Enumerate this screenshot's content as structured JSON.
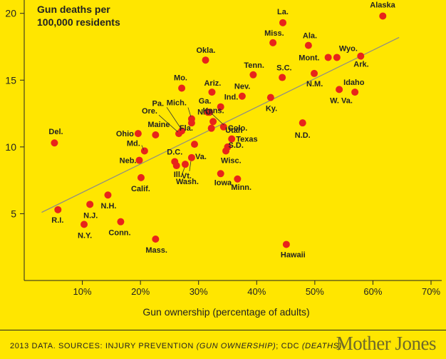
{
  "chart_data": {
    "type": "scatter",
    "title": "Gun deaths per 100,000 residents",
    "title_lines": [
      "Gun deaths per",
      "100,000 residents"
    ],
    "xlabel": "Gun ownership (percentage of adults)",
    "ylabel": "Gun deaths per 100,000 residents",
    "xlim": [
      0,
      70
    ],
    "ylim": [
      0,
      21
    ],
    "x_ticks": [
      10,
      20,
      30,
      40,
      50,
      60,
      70
    ],
    "x_tick_labels": [
      "10%",
      "20%",
      "30%",
      "40%",
      "50%",
      "60%",
      "70%"
    ],
    "y_ticks": [
      5,
      10,
      15,
      20
    ],
    "y_tick_labels": [
      "5",
      "10",
      "15",
      "20"
    ],
    "grid": false,
    "trendline": {
      "from": [
        3,
        5.1
      ],
      "to": [
        64.5,
        18.2
      ]
    },
    "point_color": "#e8241a",
    "line_color": "#8a8a8a",
    "points": [
      {
        "label": "Alaska",
        "x": 61.7,
        "y": 19.8
      },
      {
        "label": "La.",
        "x": 44.5,
        "y": 19.3
      },
      {
        "label": "Miss.",
        "x": 42.8,
        "y": 17.8
      },
      {
        "label": "Ala.",
        "x": 48.9,
        "y": 17.6
      },
      {
        "label": "Wyo.",
        "x": 53.8,
        "y": 16.7
      },
      {
        "label": "Mont.",
        "x": 52.3,
        "y": 16.7
      },
      {
        "label": "Ark.",
        "x": 57.9,
        "y": 16.8
      },
      {
        "label": "Okla.",
        "x": 31.2,
        "y": 16.5
      },
      {
        "label": "Tenn.",
        "x": 39.4,
        "y": 15.4
      },
      {
        "label": "N.M.",
        "x": 49.9,
        "y": 15.5
      },
      {
        "label": "S.C.",
        "x": 44.4,
        "y": 15.2
      },
      {
        "label": "Idaho",
        "x": 56.9,
        "y": 14.1
      },
      {
        "label": "W. Va.",
        "x": 54.2,
        "y": 14.3
      },
      {
        "label": "Mo.",
        "x": 27.1,
        "y": 14.4
      },
      {
        "label": "Ariz.",
        "x": 32.3,
        "y": 14.1
      },
      {
        "label": "Nev.",
        "x": 37.5,
        "y": 13.8
      },
      {
        "label": "Ky.",
        "x": 42.4,
        "y": 13.7
      },
      {
        "label": "Ind.",
        "x": 33.8,
        "y": 13.0
      },
      {
        "label": "Ga.",
        "x": 31.6,
        "y": 12.6
      },
      {
        "label": "Utah",
        "x": 31.9,
        "y": 12.6
      },
      {
        "label": "Mich.",
        "x": 28.8,
        "y": 12.1
      },
      {
        "label": "Fla.",
        "x": 28.8,
        "y": 11.8
      },
      {
        "label": "N.C.",
        "x": 32.5,
        "y": 11.9
      },
      {
        "label": "N.D.",
        "x": 47.9,
        "y": 11.8
      },
      {
        "label": "Colo.",
        "x": 34.3,
        "y": 11.5
      },
      {
        "label": "Pa.",
        "x": 27.1,
        "y": 11.2
      },
      {
        "label": "Ore.",
        "x": 26.6,
        "y": 11.0
      },
      {
        "label": "Kans.",
        "x": 32.2,
        "y": 11.4
      },
      {
        "label": "Ohio",
        "x": 19.6,
        "y": 11.0
      },
      {
        "label": "Maine",
        "x": 22.6,
        "y": 10.9
      },
      {
        "label": "Del.",
        "x": 5.2,
        "y": 10.3
      },
      {
        "label": "Texas",
        "x": 35.7,
        "y": 10.6
      },
      {
        "label": "Md.",
        "x": 20.7,
        "y": 9.7
      },
      {
        "label": "S.D.",
        "x": 35.0,
        "y": 10.0
      },
      {
        "label": "Wisc.",
        "x": 34.7,
        "y": 9.7
      },
      {
        "label": "Va.",
        "x": 29.3,
        "y": 10.2
      },
      {
        "label": "Neb.",
        "x": 19.8,
        "y": 9.0
      },
      {
        "label": "D.C.",
        "x": 25.9,
        "y": 8.9
      },
      {
        "label": "Ill.",
        "x": 26.2,
        "y": 8.6
      },
      {
        "label": "Vt.",
        "x": 28.8,
        "y": 9.2
      },
      {
        "label": "Washington",
        "x": 27.7,
        "y": 8.7
      },
      {
        "label": "Iowa",
        "x": 33.8,
        "y": 8.0
      },
      {
        "label": "Minn.",
        "x": 36.7,
        "y": 7.6
      },
      {
        "label": "Calif.",
        "x": 20.1,
        "y": 7.7
      },
      {
        "label": "N.H.",
        "x": 14.4,
        "y": 6.4
      },
      {
        "label": "N.J.",
        "x": 11.3,
        "y": 5.7
      },
      {
        "label": "R.I.",
        "x": 5.8,
        "y": 5.3
      },
      {
        "label": "Conn.",
        "x": 16.6,
        "y": 4.4
      },
      {
        "label": "N.Y.",
        "x": 10.3,
        "y": 4.2
      },
      {
        "label": "Mass.",
        "x": 22.6,
        "y": 3.1
      },
      {
        "label": "Hawaii",
        "x": 45.1,
        "y": 2.7
      }
    ],
    "point_labels": {
      "Alaska": "Alaska",
      "La.": "La.",
      "Miss.": "Miss.",
      "Ala.": "Ala.",
      "Wyo.": "Wyo.",
      "Mont.": "Mont.",
      "Ark.": "Ark.",
      "Okla.": "Okla.",
      "Tenn.": "Tenn.",
      "N.M.": "N.M.",
      "S.C.": "S.C.",
      "Idaho": "Idaho",
      "W. Va.": "W. Va.",
      "Mo.": "Mo.",
      "Ariz.": "Ariz.",
      "Nev.": "Nev.",
      "Ky.": "Ky.",
      "Ind.": "Ind.",
      "Ga.": "Ga.",
      "Utah": "Utah",
      "Mich.": "Mich.",
      "Fla.": "Fla.",
      "N.C.": "N.C.",
      "N.D.": "N.D.",
      "Colo.": "Colo.",
      "Pa.": "Pa.",
      "Ore.": "Ore.",
      "Kans.": "Kans.",
      "Ohio": "Ohio",
      "Maine": "Maine",
      "Del.": "Del.",
      "Texas": "Texas",
      "Md.": "Md.",
      "S.D.": "S.D.",
      "Wisc.": "Wisc.",
      "Va.": "Va.",
      "Neb.": "Neb.",
      "D.C.": "D.C.",
      "Ill.": "Ill.",
      "Vt.": "Vt.",
      "Washington": "Wash.",
      "Iowa": "Iowa",
      "Minn.": "Minn.",
      "Calif.": "Calif.",
      "N.H.": "N.H.",
      "N.J.": "N.J.",
      "R.I.": "R.I.",
      "Conn.": "Conn.",
      "N.Y.": "N.Y.",
      "Mass.": "Mass.",
      "Hawaii": "Hawaii"
    },
    "source": "2013 DATA. SOURCES: INJURY PREVENTION (GUN OWNERSHIP); CDC (DEATHS)",
    "source_parts": [
      {
        "text": "2013 DATA. SOURCES: INJURY PREVENTION ",
        "italic": false
      },
      {
        "text": "(GUN OWNERSHIP)",
        "italic": true
      },
      {
        "text": "; CDC ",
        "italic": false
      },
      {
        "text": "(DEATHS)",
        "italic": true
      }
    ]
  },
  "brand": {
    "logo_text": "Mother Jones"
  }
}
